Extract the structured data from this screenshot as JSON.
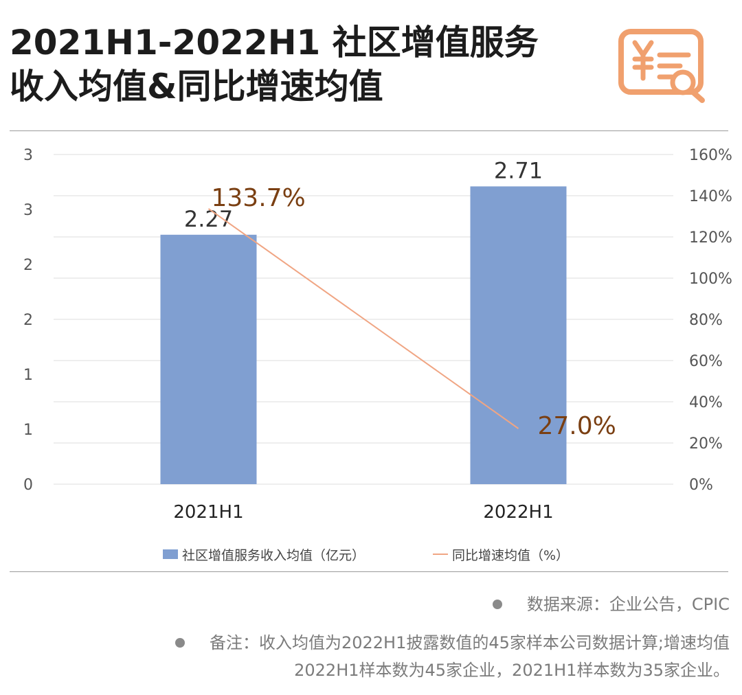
{
  "title": {
    "line1": "2021H1-2022H1 社区增值服务",
    "line2": "收入均值&同比增速均值"
  },
  "logo": {
    "icon": "yuan-document-search-icon",
    "color": "#f0a06e"
  },
  "chart_data": {
    "type": "bar",
    "categories": [
      "2021H1",
      "2022H1"
    ],
    "series": [
      {
        "name": "社区增值服务收入均值（亿元）",
        "type": "bar",
        "axis": "left",
        "values": [
          2.27,
          2.71
        ],
        "labels": [
          "2.27",
          "2.71"
        ],
        "color": "#809fd1"
      },
      {
        "name": "同比增速均值（%）",
        "type": "line",
        "axis": "right",
        "values": [
          133.7,
          27.0
        ],
        "labels": [
          "133.7%",
          "27.0%"
        ],
        "color": "#f0a583"
      }
    ],
    "left_axis": {
      "ylim": [
        0,
        3
      ],
      "tick_labels": [
        "0",
        "1",
        "1",
        "2",
        "2",
        "3",
        "3"
      ]
    },
    "right_axis": {
      "ylim": [
        0,
        160
      ],
      "tick_labels": [
        "0%",
        "20%",
        "40%",
        "60%",
        "80%",
        "100%",
        "120%",
        "140%",
        "160%"
      ]
    },
    "label_color_line": "#7a3f12",
    "grid": true,
    "legend_position": "bottom"
  },
  "notes": {
    "source": "数据来源：企业公告，CPIC",
    "remark_line1": "备注：收入均值为2022H1披露数值的45家样本公司数据计算;增速均值",
    "remark_line2": "2022H1样本数为45家企业，2021H1样本数为35家企业。"
  }
}
